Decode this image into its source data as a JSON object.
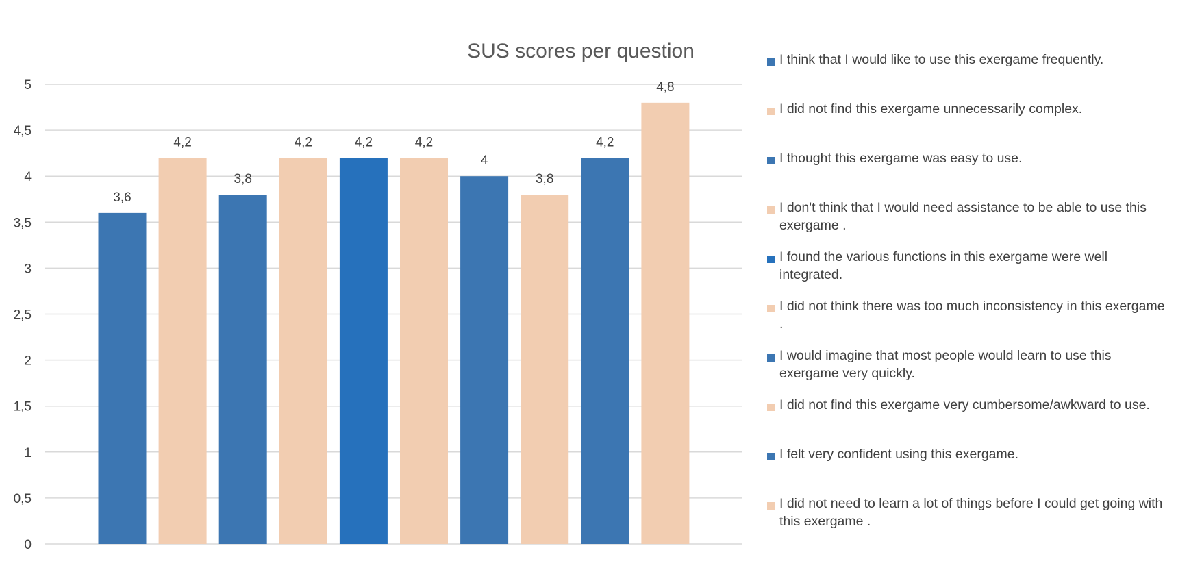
{
  "chart_data": {
    "type": "bar",
    "title": "SUS scores per question",
    "xlabel": "",
    "ylabel": "",
    "ylim": [
      0,
      5
    ],
    "yticks": [
      "0",
      "0,5",
      "1",
      "1,5",
      "2",
      "2,5",
      "3",
      "3,5",
      "4",
      "4,5",
      "5"
    ],
    "grid": true,
    "legend_position": "right",
    "series": [
      {
        "name": "I think that I would like to use this exergame frequently.",
        "value": 3.6,
        "label": "3,6",
        "color": "#3c76b2"
      },
      {
        "name": "I did not find this exergame unnecessarily complex.",
        "value": 4.2,
        "label": "4,2",
        "color": "#f2cdb1"
      },
      {
        "name": "I thought this exergame was easy to use.",
        "value": 3.8,
        "label": "3,8",
        "color": "#3c76b2"
      },
      {
        "name": "I don't think that I would  need assistance to be able to use this exergame .",
        "value": 4.2,
        "label": "4,2",
        "color": "#f2cdb1"
      },
      {
        "name": "I found the various functions in this exergame were well integrated.",
        "value": 4.2,
        "label": "4,2",
        "color": "#2671bc"
      },
      {
        "name": "I did not think there was too much inconsistency in this exergame .",
        "value": 4.2,
        "label": "4,2",
        "color": "#f2cdb1"
      },
      {
        "name": "I would imagine that most people would learn to use this exergame very quickly.",
        "value": 4.0,
        "label": "4",
        "color": "#3c76b2"
      },
      {
        "name": "I did not find this exergame very cumbersome/awkward to use.",
        "value": 3.8,
        "label": "3,8",
        "color": "#f2cdb1"
      },
      {
        "name": "I felt very confident using this exergame.",
        "value": 4.2,
        "label": "4,2",
        "color": "#3c76b2"
      },
      {
        "name": "I did not need to learn a lot of things before I could get going with this exergame .",
        "value": 4.8,
        "label": "4,8",
        "color": "#f2cdb1"
      }
    ]
  }
}
